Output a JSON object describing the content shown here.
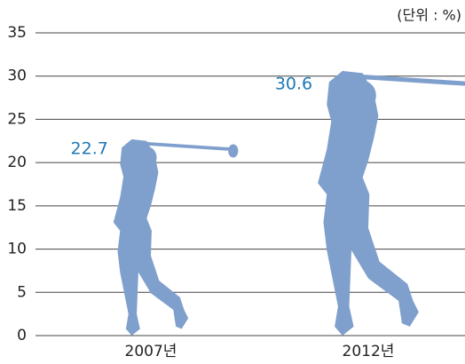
{
  "chart_data": {
    "type": "bar",
    "unit_label": "(단위 : %)",
    "categories": [
      "2007년",
      "2012년"
    ],
    "values": [
      22.7,
      30.6
    ],
    "color": "#7f9fcc",
    "label_color": "#1f78b4",
    "ylim": [
      0,
      35
    ],
    "yticks": [
      0,
      5,
      10,
      15,
      20,
      25,
      30,
      35
    ],
    "grid": true
  }
}
